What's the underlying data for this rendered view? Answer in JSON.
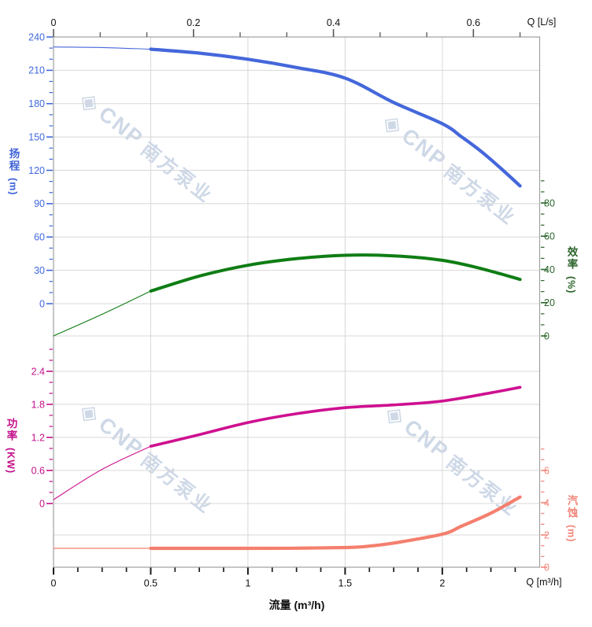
{
  "watermark": {
    "cnp": "CNP",
    "cn": "南方泵业",
    "logo_glyph": "◈",
    "color": "#a7bad4"
  },
  "chart_data": {
    "type": "line",
    "title": "",
    "x_axis_bottom": {
      "title": "流量 (m³/h)",
      "unit": "Q [m³/h]",
      "ticks": [
        0,
        0.5,
        1,
        1.5,
        2
      ],
      "minor_step": 0.125,
      "range": [
        0,
        2.5
      ]
    },
    "x_axis_top": {
      "unit": "Q [L/s]",
      "ticks": [
        0,
        0.2,
        0.4,
        0.6
      ],
      "minors_per_major": 3,
      "m3h_per_unit": 3.6
    },
    "y_axes": [
      {
        "id": "head",
        "label_cn": "扬程",
        "unit": "(m)",
        "side": "left",
        "color": "#4169DC",
        "ticks": [
          0,
          30,
          60,
          90,
          120,
          150,
          180,
          210,
          240
        ],
        "minor_step": 10,
        "extra_minors": [],
        "range": [
          0,
          240
        ]
      },
      {
        "id": "eff",
        "label_cn": "效率",
        "unit": "(%)",
        "side": "right",
        "color": "#2B652B",
        "ticks": [
          0,
          20,
          40,
          60,
          80
        ],
        "minor_step": 6.6667,
        "extra_minors": [
          86.67,
          93.33
        ],
        "range": [
          0,
          80
        ]
      },
      {
        "id": "power",
        "label_cn": "功率",
        "unit": "(KW)",
        "side": "left",
        "color": "#C4108A",
        "ticks": [
          0,
          0.6,
          1.2,
          1.8,
          2.4
        ],
        "minor_step": 0.2,
        "extra_minors": [
          2.6,
          2.8
        ],
        "range": [
          0,
          2.4
        ]
      },
      {
        "id": "npsh",
        "label_cn": "汽蚀",
        "unit": "(m)",
        "side": "right",
        "color": "#F28579",
        "ticks": [
          0,
          2,
          4,
          6
        ],
        "minor_step": 0.6667,
        "extra_minors": [
          6.67,
          7.33
        ],
        "range": [
          0,
          6
        ]
      }
    ],
    "bold_from_q": 0.5,
    "series": [
      {
        "id": "head",
        "name_cn": "扬程",
        "axis": "head",
        "color": "#4467DB",
        "q": [
          0,
          0.25,
          0.5,
          0.75,
          1,
          1.25,
          1.5,
          1.75,
          2,
          2.1,
          2.2,
          2.3,
          2.4
        ],
        "values": [
          231,
          230.5,
          229,
          225.5,
          220,
          212.5,
          203,
          181,
          162,
          150,
          137,
          122,
          106
        ]
      },
      {
        "id": "eff",
        "name_cn": "效率",
        "axis": "eff",
        "color": "#0F7D14",
        "q": [
          0,
          0.25,
          0.5,
          0.75,
          1,
          1.25,
          1.5,
          1.75,
          2,
          2.2,
          2.4
        ],
        "values": [
          0,
          13,
          27,
          36,
          42.5,
          46.5,
          48.5,
          48.2,
          45.5,
          40.5,
          34
        ]
      },
      {
        "id": "power",
        "name_cn": "功率",
        "axis": "power",
        "color": "#CE1090",
        "q": [
          0,
          0.25,
          0.5,
          0.75,
          1,
          1.25,
          1.5,
          1.75,
          2,
          2.25,
          2.4
        ],
        "values": [
          0.07,
          0.62,
          1.04,
          1.25,
          1.47,
          1.63,
          1.74,
          1.79,
          1.86,
          2.01,
          2.11
        ]
      },
      {
        "id": "npsh",
        "name_cn": "汽蚀",
        "axis": "npsh",
        "color": "#F47F6E",
        "q": [
          0,
          0.5,
          1,
          1.25,
          1.5,
          1.6,
          1.75,
          2,
          2.1,
          2.25,
          2.4
        ],
        "values": [
          1.17,
          1.17,
          1.17,
          1.18,
          1.22,
          1.28,
          1.5,
          2.05,
          2.55,
          3.35,
          4.35
        ]
      }
    ]
  }
}
